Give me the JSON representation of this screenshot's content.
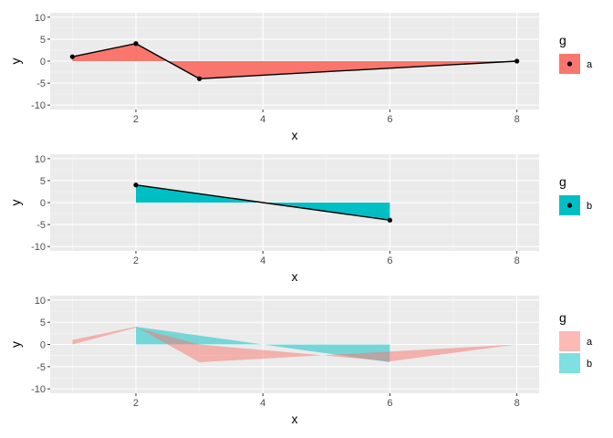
{
  "colors": {
    "a": "#F8766D",
    "b": "#00BFC4",
    "panel": "#EBEBEB",
    "grid_major": "#FFFFFF",
    "grid_minor": "#F5F5F5"
  },
  "chart_data": [
    {
      "type": "area",
      "xlabel": "x",
      "ylabel": "y",
      "xlim": [
        0.65,
        8.35
      ],
      "ylim": [
        -11,
        11
      ],
      "xticks": [
        2,
        4,
        6,
        8
      ],
      "xtick_labels": [
        "2",
        "4",
        "6",
        "8"
      ],
      "yticks": [
        -10,
        -5,
        0,
        5,
        10
      ],
      "ytick_labels": [
        "-10",
        "-5",
        "0",
        "5",
        "10"
      ],
      "series": [
        {
          "key": "a",
          "x": [
            1,
            2,
            3,
            8
          ],
          "y": [
            1,
            4,
            -4,
            0
          ],
          "points": true,
          "line": true,
          "alpha": 1
        }
      ],
      "legend": {
        "title": "g",
        "position": "right",
        "show_point": true,
        "entries": [
          {
            "key": "a",
            "label": "a"
          }
        ]
      }
    },
    {
      "type": "area",
      "xlabel": "x",
      "ylabel": "y",
      "xlim": [
        0.65,
        8.35
      ],
      "ylim": [
        -11,
        11
      ],
      "xticks": [
        2,
        4,
        6,
        8
      ],
      "xtick_labels": [
        "2",
        "4",
        "6",
        "8"
      ],
      "yticks": [
        -10,
        -5,
        0,
        5,
        10
      ],
      "ytick_labels": [
        "-10",
        "-5",
        "0",
        "5",
        "10"
      ],
      "series": [
        {
          "key": "b",
          "x": [
            2,
            6
          ],
          "y": [
            4,
            -4
          ],
          "points": true,
          "line": true,
          "alpha": 1
        }
      ],
      "legend": {
        "title": "g",
        "position": "right",
        "show_point": true,
        "entries": [
          {
            "key": "b",
            "label": "b"
          }
        ]
      }
    },
    {
      "type": "area",
      "stacked": true,
      "xlabel": "x",
      "ylabel": "y",
      "xlim": [
        0.65,
        8.35
      ],
      "ylim": [
        -11,
        11
      ],
      "xticks": [
        2,
        4,
        6,
        8
      ],
      "xtick_labels": [
        "2",
        "4",
        "6",
        "8"
      ],
      "yticks": [
        -10,
        -5,
        0,
        5,
        10
      ],
      "ytick_labels": [
        "-10",
        "-5",
        "0",
        "5",
        "10"
      ],
      "series": [
        {
          "key": "b",
          "x": [
            2,
            6
          ],
          "y": [
            4,
            -4
          ],
          "points": false,
          "line": false,
          "alpha": 0.5
        },
        {
          "key": "a",
          "x": [
            1,
            2,
            3,
            6,
            8
          ],
          "y": [
            1,
            4,
            -4,
            -1.6,
            0
          ],
          "base": [
            0,
            3.8,
            0,
            -3.8,
            0
          ],
          "points": false,
          "line": false,
          "alpha": 0.5
        }
      ],
      "legend": {
        "title": "g",
        "position": "right",
        "show_point": false,
        "entries": [
          {
            "key": "a",
            "label": "a"
          },
          {
            "key": "b",
            "label": "b"
          }
        ]
      }
    }
  ]
}
